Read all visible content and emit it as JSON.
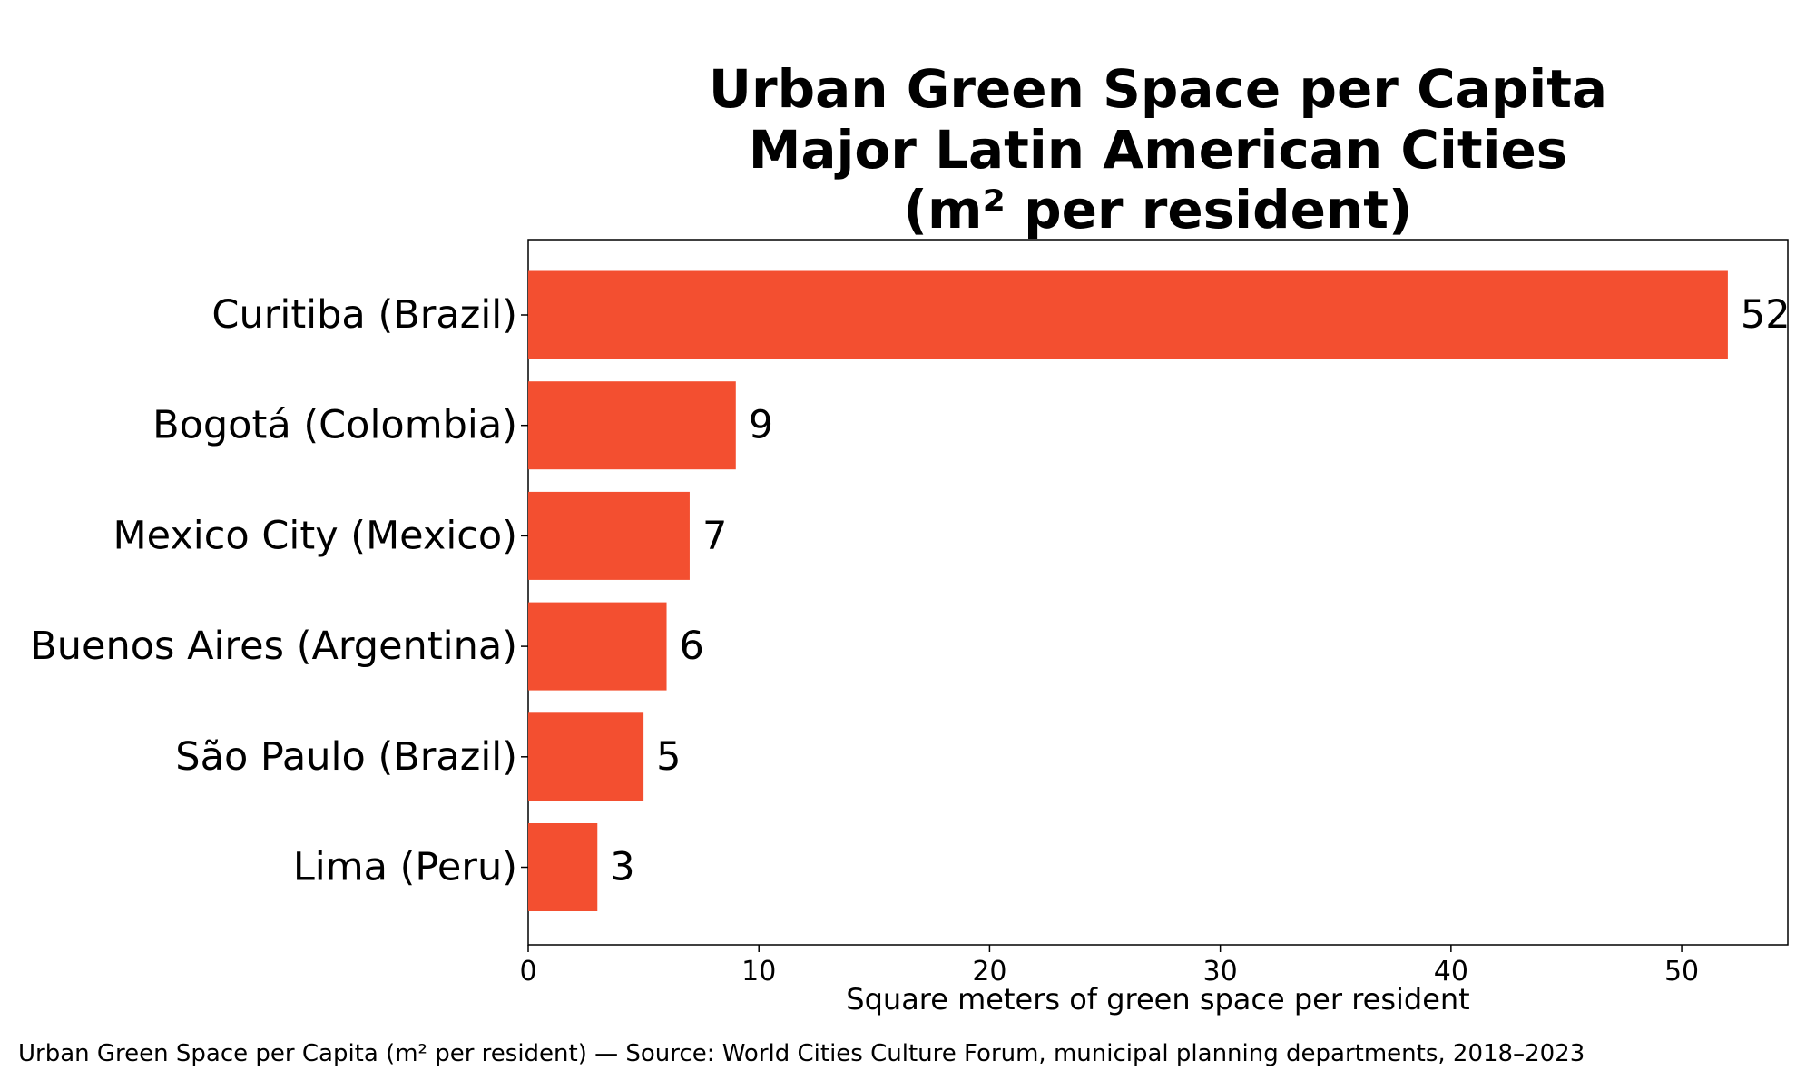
{
  "chart_data": {
    "type": "bar",
    "orientation": "horizontal",
    "title_lines": [
      "Urban Green Space per Capita",
      "Major Latin American Cities",
      "(m² per resident)"
    ],
    "categories": [
      "Curitiba (Brazil)",
      "Bogotá (Colombia)",
      "Mexico City (Mexico)",
      "Buenos Aires (Argentina)",
      "São Paulo (Brazil)",
      "Lima (Peru)"
    ],
    "values": [
      52,
      9,
      7,
      6,
      5,
      3
    ],
    "value_labels": [
      "52",
      "9",
      "7",
      "6",
      "5",
      "3"
    ],
    "xlabel": "Square meters of green space per resident",
    "ylabel": "",
    "xlim": [
      0,
      54.6
    ],
    "xticks": [
      0,
      10,
      20,
      30,
      40,
      50
    ],
    "xtick_labels": [
      "0",
      "10",
      "20",
      "30",
      "40",
      "50"
    ],
    "grid": false,
    "bar_color": "#f34f30",
    "caption": "Urban Green Space per Capita (m² per resident) — Source: World Cities Culture Forum, municipal planning departments, 2018–2023"
  }
}
